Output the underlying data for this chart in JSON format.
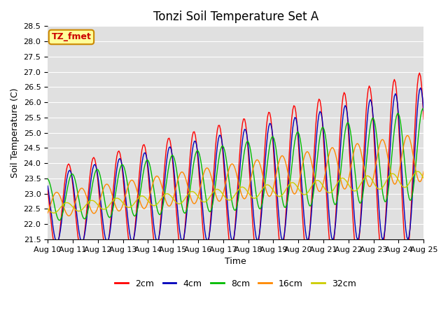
{
  "title": "Tonzi Soil Temperature Set A",
  "xlabel": "Time",
  "ylabel": "Soil Temperature (C)",
  "ylim": [
    21.5,
    28.5
  ],
  "xlim": [
    0,
    15
  ],
  "xtick_labels": [
    "Aug 10",
    "Aug 11",
    "Aug 12",
    "Aug 13",
    "Aug 14",
    "Aug 15",
    "Aug 16",
    "Aug 17",
    "Aug 18",
    "Aug 19",
    "Aug 20",
    "Aug 21",
    "Aug 22",
    "Aug 23",
    "Aug 24",
    "Aug 25"
  ],
  "series_colors": [
    "#ff0000",
    "#0000bb",
    "#00bb00",
    "#ff8800",
    "#cccc00"
  ],
  "series_labels": [
    "2cm",
    "4cm",
    "8cm",
    "16cm",
    "32cm"
  ],
  "annotation_text": "TZ_fmet",
  "annotation_bg": "#ffff99",
  "annotation_border": "#cc8800",
  "bg_color": "#e0e0e0",
  "title_fontsize": 12,
  "axis_fontsize": 9,
  "tick_fontsize": 8,
  "legend_fontsize": 9
}
